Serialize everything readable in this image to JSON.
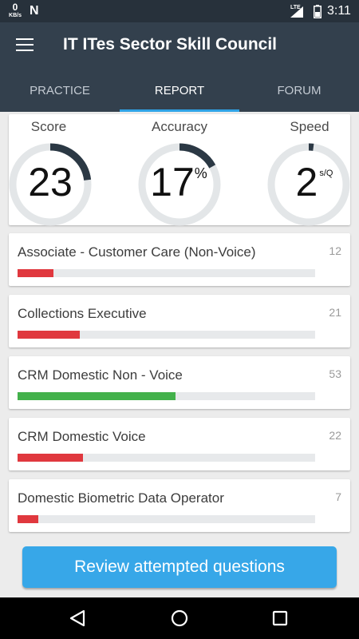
{
  "status_bar": {
    "net_speed": "0",
    "net_unit": "KB/s",
    "notif_icon": "N",
    "network_type": "LTE",
    "time": "3:11"
  },
  "app_bar": {
    "title": "IT ITes Sector Skill Council",
    "menu_icon": "hamburger-icon"
  },
  "tabs": [
    {
      "label": "PRACTICE",
      "active": false
    },
    {
      "label": "REPORT",
      "active": true
    },
    {
      "label": "FORUM",
      "active": false
    }
  ],
  "summary": {
    "score": {
      "label": "Score",
      "value": "23",
      "fraction": 0.23
    },
    "accuracy": {
      "label": "Accuracy",
      "value": "17",
      "unit": "%",
      "fraction": 0.17
    },
    "speed": {
      "label": "Speed",
      "value": "2",
      "unit": "s/Q",
      "fraction": 0.02
    }
  },
  "categories": [
    {
      "name": "Associate - Customer Care (Non-Voice)",
      "count": "12",
      "progress": 0.12,
      "color": "#e0383e"
    },
    {
      "name": "Collections Executive",
      "count": "21",
      "progress": 0.21,
      "color": "#e0383e"
    },
    {
      "name": "CRM Domestic Non - Voice",
      "count": "53",
      "progress": 0.53,
      "color": "#43b14b"
    },
    {
      "name": "CRM Domestic Voice",
      "count": "22",
      "progress": 0.22,
      "color": "#e0383e"
    },
    {
      "name": "Domestic Biometric Data Operator",
      "count": "7",
      "progress": 0.07,
      "color": "#e0383e"
    }
  ],
  "review_button": {
    "label": "Review attempted questions"
  },
  "colors": {
    "app_bar": "#33404d",
    "accent": "#2fa3e6",
    "gauge_track": "#e3e6e8",
    "gauge_fill": "#2b3844",
    "bad": "#e0383e",
    "good": "#43b14b"
  },
  "nav_bar": {
    "back_icon": "back-triangle-icon",
    "home_icon": "home-circle-icon",
    "recents_icon": "recents-square-icon"
  }
}
